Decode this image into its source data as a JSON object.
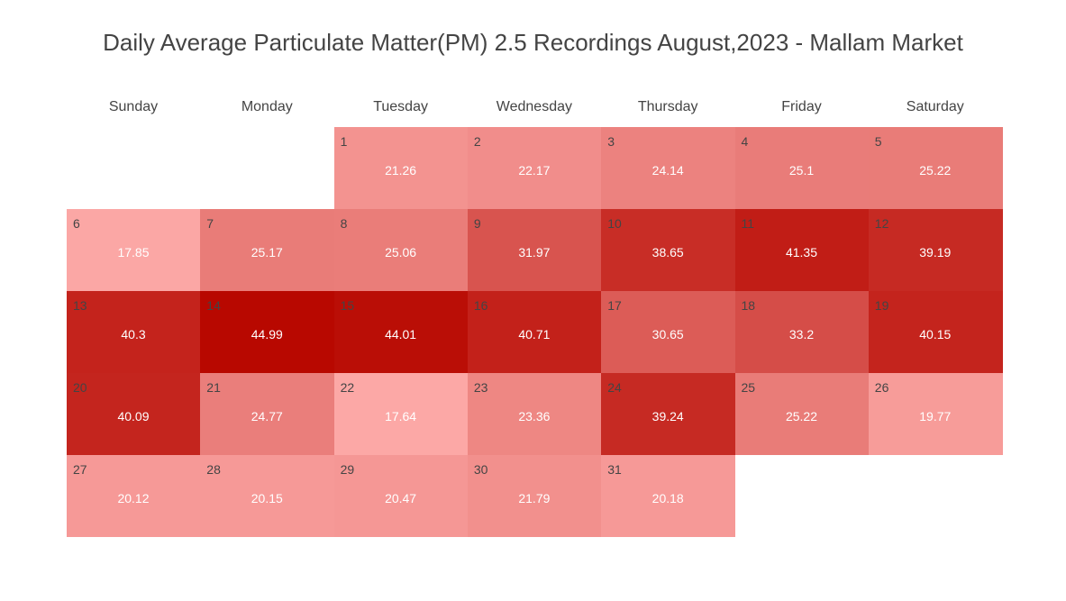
{
  "chart_data": {
    "type": "heatmap",
    "title": "Daily Average Particulate Matter(PM) 2.5 Recordings August,2023 - Mallam Market",
    "weekdays": [
      "Sunday",
      "Monday",
      "Tuesday",
      "Wednesday",
      "Thursday",
      "Friday",
      "Saturday"
    ],
    "first_weekday_index": 2,
    "value_range": [
      17.64,
      44.99
    ],
    "color_scale": [
      "#fca8a6",
      "#b80800"
    ],
    "days": [
      {
        "day": "1",
        "value": 21.26
      },
      {
        "day": "2",
        "value": 22.17
      },
      {
        "day": "3",
        "value": 24.14
      },
      {
        "day": "4",
        "value": 25.1
      },
      {
        "day": "5",
        "value": 25.22
      },
      {
        "day": "6",
        "value": 17.85
      },
      {
        "day": "7",
        "value": 25.17
      },
      {
        "day": "8",
        "value": 25.06
      },
      {
        "day": "9",
        "value": 31.97
      },
      {
        "day": "10",
        "value": 38.65
      },
      {
        "day": "11",
        "value": 41.35
      },
      {
        "day": "12",
        "value": 39.19
      },
      {
        "day": "13",
        "value": 40.3
      },
      {
        "day": "14",
        "value": 44.99
      },
      {
        "day": "15",
        "value": 44.01
      },
      {
        "day": "16",
        "value": 40.71
      },
      {
        "day": "17",
        "value": 30.65
      },
      {
        "day": "18",
        "value": 33.2
      },
      {
        "day": "19",
        "value": 40.15
      },
      {
        "day": "20",
        "value": 40.09
      },
      {
        "day": "21",
        "value": 24.77
      },
      {
        "day": "22",
        "value": 17.64
      },
      {
        "day": "23",
        "value": 23.36
      },
      {
        "day": "24",
        "value": 39.24
      },
      {
        "day": "25",
        "value": 25.22
      },
      {
        "day": "26",
        "value": 19.77
      },
      {
        "day": "27",
        "value": 20.12
      },
      {
        "day": "28",
        "value": 20.15
      },
      {
        "day": "29",
        "value": 20.47
      },
      {
        "day": "30",
        "value": 21.79
      },
      {
        "day": "31",
        "value": 20.18
      }
    ]
  }
}
